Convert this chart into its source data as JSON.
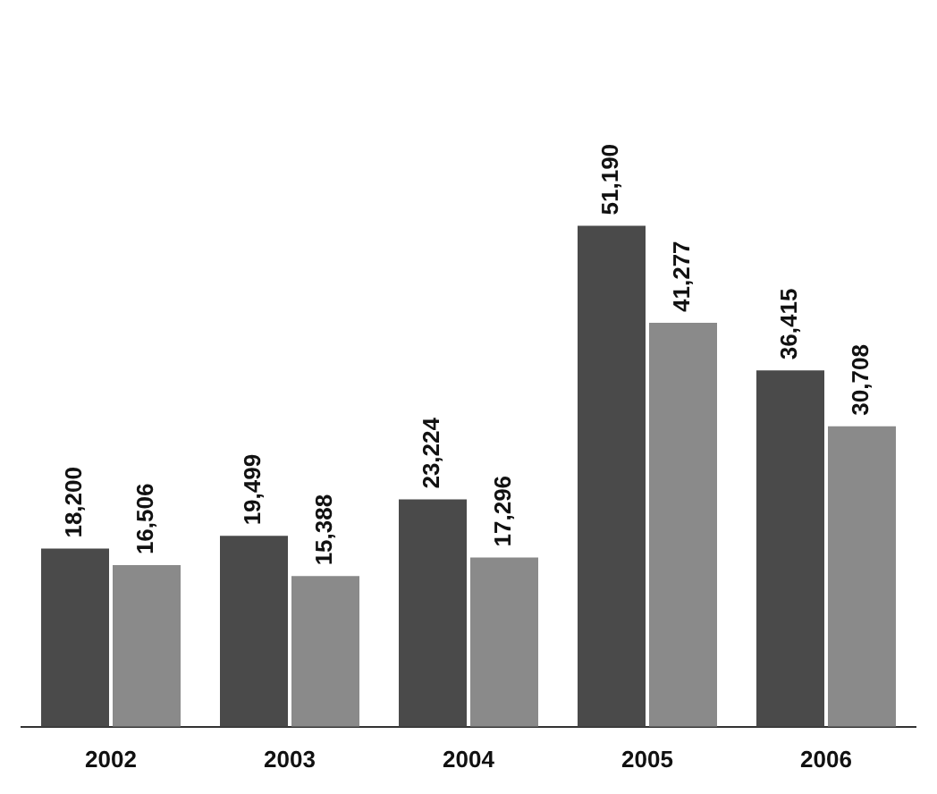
{
  "chart_data": {
    "type": "bar",
    "categories": [
      "2002",
      "2003",
      "2004",
      "2005",
      "2006"
    ],
    "series": [
      {
        "color": "#4a4a4a",
        "values": [
          18200,
          19499,
          23224,
          51190,
          36415
        ],
        "value_labels": [
          "18,200",
          "19,499",
          "23,224",
          "51,190",
          "36,415"
        ]
      },
      {
        "color": "#8a8a8a",
        "values": [
          16506,
          15388,
          17296,
          41277,
          30708
        ],
        "value_labels": [
          "16,506",
          "15,388",
          "17,296",
          "41,277",
          "30,708"
        ]
      }
    ],
    "grid": false,
    "legend": false
  }
}
